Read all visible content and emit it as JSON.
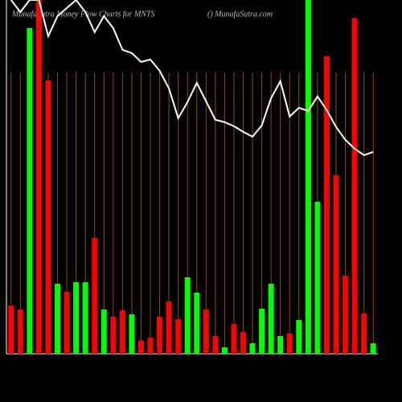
{
  "chart_data": {
    "type": "bar",
    "title": "MunafaSutra Money Flow Charts for MNTS",
    "subtitle": "() MunafaSutra.com",
    "ylim": [
      0,
      440
    ],
    "series": [
      {
        "name": "Money Flow",
        "values": [
          60,
          55,
          405,
          440,
          340,
          87,
          77,
          89,
          89,
          144,
          55,
          46,
          54,
          49,
          16,
          20,
          46,
          65,
          43,
          95,
          76,
          55,
          22,
          8,
          37,
          27,
          13,
          56,
          87,
          22,
          25,
          42,
          440,
          189,
          370,
          222,
          97,
          417,
          50,
          13
        ],
        "colors": [
          "red",
          "red",
          "lime",
          "red",
          "red",
          "lime",
          "red",
          "lime",
          "lime",
          "red",
          "lime",
          "red",
          "red",
          "lime",
          "red",
          "red",
          "red",
          "red",
          "red",
          "lime",
          "lime",
          "red",
          "red",
          "lime",
          "red",
          "red",
          "lime",
          "lime",
          "lime",
          "lime",
          "red",
          "lime",
          "lime",
          "lime",
          "red",
          "red",
          "red",
          "red",
          "red",
          "lime"
        ]
      },
      {
        "name": "Price",
        "color": "#ffffff",
        "values": [
          440,
          425,
          440,
          440,
          395,
          420,
          430,
          440,
          425,
          400,
          420,
          405,
          378,
          374,
          363,
          366,
          352,
          330,
          293,
          313,
          337,
          314,
          291,
          288,
          283,
          276,
          270,
          284,
          318,
          339,
          295,
          306,
          302,
          320,
          303,
          282,
          266,
          255,
          247,
          251
        ]
      }
    ]
  }
}
